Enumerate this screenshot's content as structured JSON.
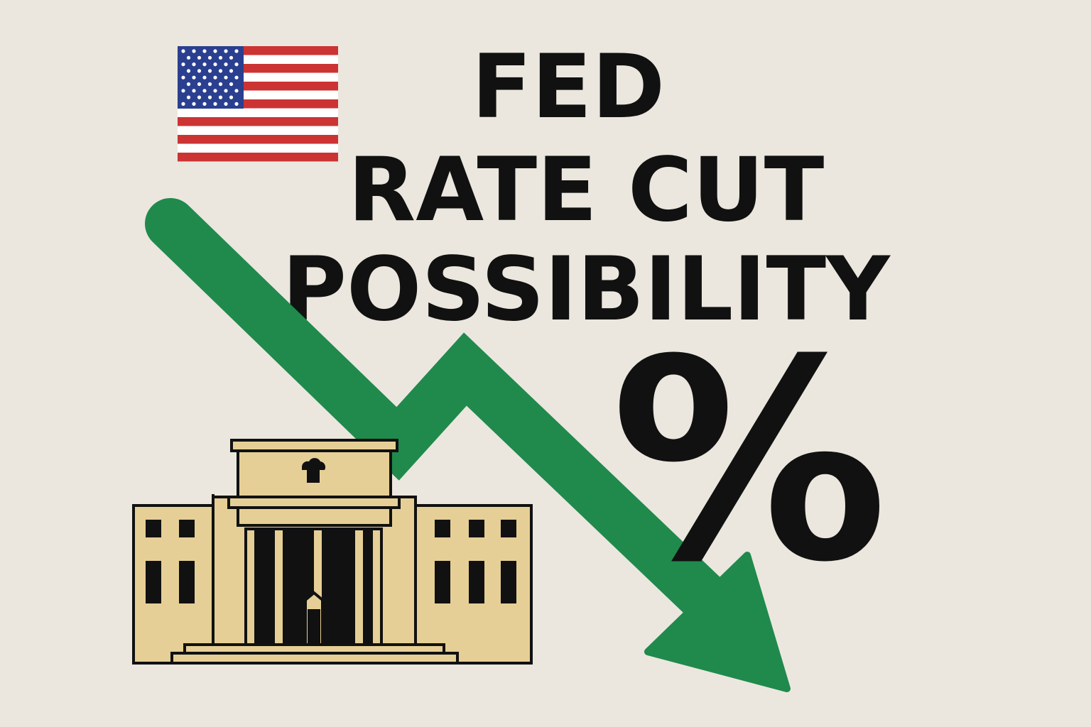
{
  "title": {
    "lines": [
      "FED",
      "RATE CUT",
      "POSSIBILITY"
    ]
  },
  "symbol": "%"
}
